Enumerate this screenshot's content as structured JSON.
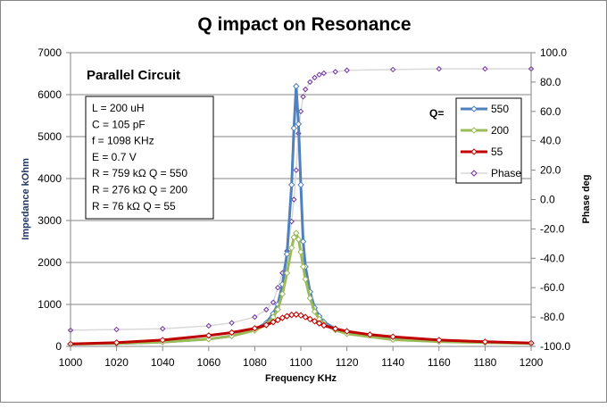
{
  "chart_data": {
    "type": "line",
    "title": "Q impact on Resonance",
    "subtitle": "Parallel Circuit",
    "xlabel": "Frequency  KHz",
    "ylabel": "Impedance  kOhm",
    "y2label": "Phase  deg",
    "xlim": [
      1000,
      1200
    ],
    "ylim": [
      0,
      7000
    ],
    "y2lim": [
      -100,
      100
    ],
    "x_ticks": [
      "1000",
      "1020",
      "1040",
      "1060",
      "1080",
      "1100",
      "1120",
      "1140",
      "1160",
      "1180",
      "1200"
    ],
    "y_ticks": [
      "0",
      "1000",
      "2000",
      "3000",
      "4000",
      "5000",
      "6000",
      "7000"
    ],
    "y2_ticks": [
      "-100.0",
      "-80.0",
      "-60.0",
      "-40.0",
      "-20.0",
      "0.0",
      "20.0",
      "40.0",
      "60.0",
      "80.0",
      "100.0"
    ],
    "grid": true,
    "legend_title": "Q=",
    "legend_position": "top-right",
    "annotations": [
      "L = 200  uH",
      "C = 105 pF",
      "f =  1098 KHz",
      "E = 0.7  V",
      "R = 759  kΩ    Q = 550",
      "R = 276  kΩ    Q = 200",
      "R =   76  kΩ     Q =  55"
    ],
    "series": [
      {
        "name": "550",
        "axis": "left",
        "color": "#4f81bd",
        "marker": "diamond",
        "x": [
          1000,
          1020,
          1040,
          1060,
          1070,
          1080,
          1085,
          1088,
          1090,
          1092,
          1094,
          1096,
          1097,
          1098,
          1099,
          1100,
          1101,
          1102,
          1104,
          1106,
          1108,
          1110,
          1115,
          1120,
          1140,
          1160,
          1180,
          1200
        ],
        "y": [
          55,
          70,
          105,
          175,
          250,
          400,
          560,
          780,
          1000,
          1480,
          2200,
          3850,
          5200,
          6200,
          5300,
          3850,
          2500,
          1900,
          1300,
          920,
          720,
          580,
          420,
          320,
          170,
          120,
          95,
          75
        ]
      },
      {
        "name": "200",
        "axis": "left",
        "color": "#9bbb59",
        "marker": "diamond",
        "x": [
          1000,
          1020,
          1040,
          1060,
          1070,
          1080,
          1085,
          1088,
          1090,
          1092,
          1094,
          1096,
          1097,
          1098,
          1099,
          1100,
          1101,
          1102,
          1104,
          1106,
          1108,
          1110,
          1115,
          1120,
          1140,
          1160,
          1180,
          1200
        ],
        "y": [
          55,
          70,
          105,
          175,
          250,
          380,
          520,
          700,
          880,
          1250,
          1750,
          2350,
          2600,
          2700,
          2550,
          2250,
          1900,
          1600,
          1150,
          830,
          650,
          530,
          390,
          300,
          160,
          115,
          90,
          70
        ]
      },
      {
        "name": "55",
        "axis": "left",
        "color": "#c00000",
        "marker": "diamond",
        "x": [
          1000,
          1020,
          1040,
          1060,
          1070,
          1080,
          1085,
          1088,
          1090,
          1092,
          1094,
          1096,
          1098,
          1100,
          1102,
          1104,
          1106,
          1108,
          1110,
          1115,
          1120,
          1130,
          1140,
          1160,
          1180,
          1200
        ],
        "y": [
          60,
          90,
          150,
          260,
          330,
          430,
          510,
          580,
          630,
          680,
          720,
          750,
          760,
          740,
          700,
          650,
          600,
          550,
          500,
          420,
          360,
          280,
          230,
          150,
          110,
          80
        ]
      },
      {
        "name": "Phase",
        "axis": "right",
        "color": "#d9d9d9",
        "marker": "diamond",
        "marker_color": "#7030a0",
        "x": [
          1000,
          1020,
          1040,
          1060,
          1070,
          1080,
          1085,
          1088,
          1090,
          1092,
          1094,
          1096,
          1097,
          1098,
          1099,
          1100,
          1101,
          1102,
          1104,
          1106,
          1108,
          1110,
          1115,
          1120,
          1140,
          1160,
          1180,
          1200
        ],
        "y": [
          -89,
          -88.5,
          -88,
          -86,
          -84,
          -80,
          -75,
          -70,
          -60,
          -50,
          -35,
          -15,
          0,
          20,
          45,
          60,
          70,
          75,
          80,
          83,
          85,
          86,
          87,
          88,
          88.5,
          89,
          89,
          89
        ]
      }
    ]
  }
}
